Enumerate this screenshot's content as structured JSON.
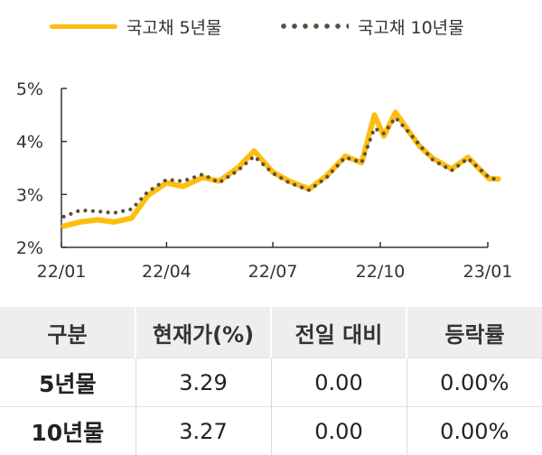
{
  "colors": {
    "series_5y": "#FDBE10",
    "series_10y": "#5A4E3E",
    "axis": "#333333"
  },
  "chart_data": {
    "type": "line",
    "title": "",
    "xlabel": "",
    "ylabel": "",
    "ylim": [
      2,
      5
    ],
    "xlim": [
      "2022-01",
      "2023-01"
    ],
    "yticks": [
      "2%",
      "3%",
      "4%",
      "5%"
    ],
    "xticks": [
      "22/01",
      "22/04",
      "22/07",
      "22/10",
      "23/01"
    ],
    "grid": false,
    "legend_position": "top",
    "x": [
      "2022-01-03",
      "2022-01-17",
      "2022-02-01",
      "2022-02-15",
      "2022-03-02",
      "2022-03-16",
      "2022-04-01",
      "2022-04-15",
      "2022-05-02",
      "2022-05-16",
      "2022-06-01",
      "2022-06-15",
      "2022-07-01",
      "2022-07-15",
      "2022-08-01",
      "2022-08-16",
      "2022-09-01",
      "2022-09-15",
      "2022-09-26",
      "2022-10-04",
      "2022-10-14",
      "2022-10-25",
      "2022-11-04",
      "2022-11-15",
      "2022-12-01",
      "2022-12-15",
      "2023-01-02",
      "2023-01-10"
    ],
    "series": [
      {
        "name": "국고채 5년물",
        "style": "solid",
        "values": [
          2.4,
          2.48,
          2.52,
          2.48,
          2.55,
          2.98,
          3.22,
          3.15,
          3.32,
          3.25,
          3.5,
          3.82,
          3.42,
          3.25,
          3.1,
          3.35,
          3.72,
          3.6,
          4.5,
          4.1,
          4.55,
          4.2,
          3.9,
          3.68,
          3.48,
          3.7,
          3.3,
          3.29
        ]
      },
      {
        "name": "국고채 10년물",
        "style": "dotted",
        "values": [
          2.58,
          2.7,
          2.68,
          2.65,
          2.72,
          3.05,
          3.28,
          3.25,
          3.38,
          3.22,
          3.45,
          3.72,
          3.4,
          3.22,
          3.08,
          3.32,
          3.7,
          3.6,
          4.25,
          4.15,
          4.45,
          4.18,
          3.92,
          3.65,
          3.45,
          3.68,
          3.32,
          3.27
        ]
      }
    ]
  },
  "table": {
    "headers": [
      "구분",
      "현재가(%)",
      "전일 대비",
      "등락률"
    ],
    "rows": [
      [
        "5년물",
        "3.29",
        "0.00",
        "0.00%"
      ],
      [
        "10년물",
        "3.27",
        "0.00",
        "0.00%"
      ]
    ]
  }
}
